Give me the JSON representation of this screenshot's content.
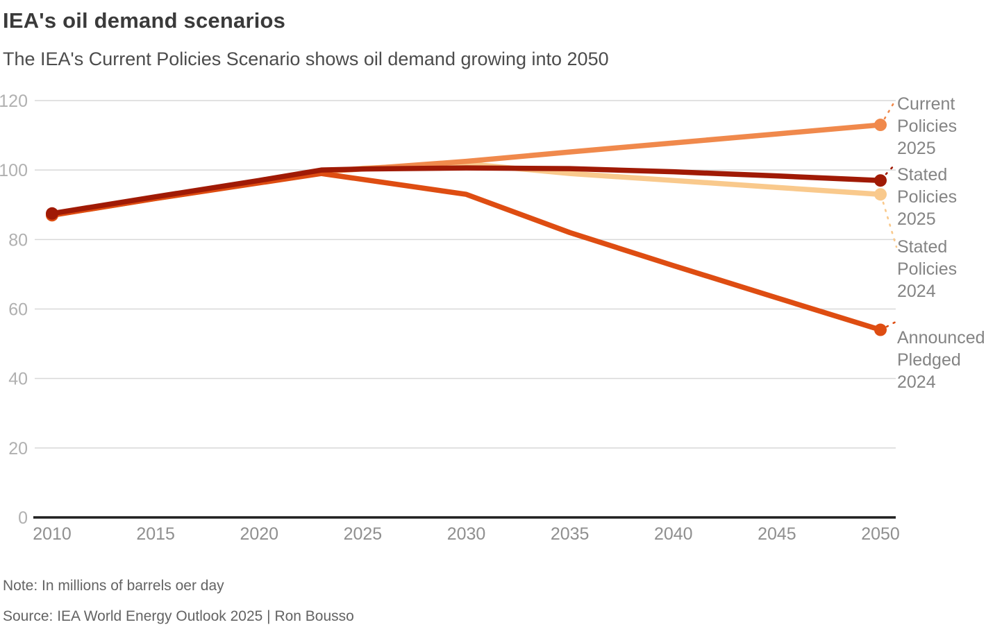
{
  "header": {
    "title": "IEA's oil demand scenarios",
    "subtitle": "The IEA's Current Policies Scenario shows oil demand growing into 2050"
  },
  "footer": {
    "note": "Note: In millions of barrels oer day",
    "source": "Source: IEA World Energy Outlook 2025 | Ron Bousso"
  },
  "chart_data": {
    "type": "line",
    "title": "IEA's oil demand scenarios",
    "subtitle": "The IEA's Current Policies Scenario shows oil demand growing into 2050",
    "unit": "millions of barrels per day",
    "x": [
      2010,
      2015,
      2020,
      2023,
      2025,
      2030,
      2035,
      2040,
      2045,
      2050
    ],
    "series": [
      {
        "name": "Current Policies 2025",
        "label_lines": [
          "Current",
          "Policies",
          "2025"
        ],
        "color": "#F0894C",
        "values": [
          87.2,
          92.0,
          96.8,
          99.6,
          100.3,
          102.5,
          105.2,
          107.8,
          110.4,
          113
        ]
      },
      {
        "name": "Stated Policies 2025",
        "label_lines": [
          "Stated",
          "Policies",
          "2025"
        ],
        "color": "#A01A05",
        "values": [
          87.5,
          92.3,
          97.0,
          100.0,
          100.3,
          100.6,
          100.4,
          99.5,
          98.3,
          97
        ]
      },
      {
        "name": "Stated Policies 2024",
        "label_lines": [
          "Stated",
          "Policies",
          "2024"
        ],
        "color": "#F9C98C",
        "values": [
          87.0,
          91.8,
          96.5,
          99.4,
          100.5,
          101.8,
          99.0,
          97.0,
          95.0,
          93
        ]
      },
      {
        "name": "Announced Pledged 2024",
        "label_lines": [
          "Announced",
          "Pledged",
          "2024"
        ],
        "color": "#DE4D12",
        "values": [
          87.0,
          91.8,
          96.3,
          99.0,
          97.3,
          93.0,
          82.0,
          72.5,
          63.2,
          54
        ]
      }
    ],
    "xticks": [
      2010,
      2015,
      2020,
      2025,
      2030,
      2035,
      2040,
      2045,
      2050
    ],
    "yticks": [
      0,
      20,
      40,
      60,
      80,
      100,
      120
    ],
    "xlim": [
      2010,
      2050
    ],
    "ylim": [
      0,
      120
    ],
    "grid": "horizontal",
    "legend_position": "right-labels",
    "axis_color": "#202020",
    "grid_color": "#d8d8d8"
  }
}
